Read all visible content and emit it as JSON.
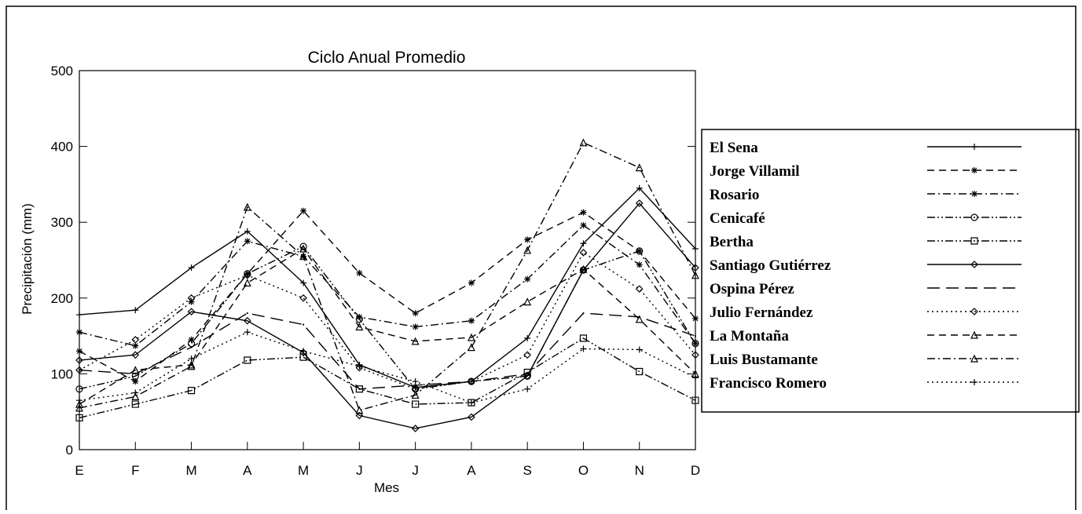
{
  "chart_data": {
    "type": "line",
    "title": "Ciclo Anual Promedio",
    "x_label": "Mes",
    "y_label": "Precipitación (mm)",
    "categories": [
      "E",
      "F",
      "M",
      "A",
      "M",
      "J",
      "J",
      "A",
      "S",
      "O",
      "N",
      "D"
    ],
    "ylim": [
      0,
      500
    ],
    "yticks": [
      0,
      100,
      200,
      300,
      400,
      500
    ],
    "series": [
      {
        "name": "El Sena",
        "color": "#000000",
        "dash": "solid",
        "marker": "plus",
        "values": [
          178,
          184,
          240,
          288,
          220,
          112,
          82,
          90,
          147,
          272,
          345,
          265
        ]
      },
      {
        "name": "Jorge Villamil",
        "color": "#000000",
        "dash": "dashed",
        "marker": "asterisk",
        "values": [
          130,
          90,
          145,
          232,
          315,
          233,
          180,
          220,
          277,
          313,
          262,
          173
        ]
      },
      {
        "name": "Rosario",
        "color": "#000000",
        "dash": "dashdot",
        "marker": "asterisk",
        "values": [
          155,
          137,
          195,
          275,
          255,
          175,
          162,
          170,
          225,
          296,
          244,
          140
        ]
      },
      {
        "name": "Cenicafé",
        "color": "#000000",
        "dash": "dashdotdot",
        "marker": "circle",
        "values": [
          80,
          97,
          140,
          232,
          268,
          172,
          80,
          90,
          97,
          237,
          262,
          140
        ]
      },
      {
        "name": "Bertha",
        "color": "#000000",
        "dash": "dashdotdot",
        "marker": "square",
        "values": [
          42,
          60,
          78,
          118,
          122,
          80,
          60,
          62,
          102,
          147,
          103,
          65
        ]
      },
      {
        "name": "Santiago Gutiérrez",
        "color": "#000000",
        "dash": "solid",
        "marker": "diamond",
        "values": [
          118,
          125,
          182,
          170,
          128,
          45,
          28,
          43,
          97,
          237,
          325,
          240
        ]
      },
      {
        "name": "Ospina Pérez",
        "color": "#000000",
        "dash": "longdash",
        "marker": "none",
        "values": [
          105,
          100,
          135,
          180,
          165,
          80,
          85,
          90,
          100,
          180,
          175,
          150
        ]
      },
      {
        "name": "Julio Fernández",
        "color": "#000000",
        "dash": "dotted",
        "marker": "diamond",
        "values": [
          105,
          145,
          200,
          230,
          200,
          108,
          80,
          90,
          125,
          260,
          212,
          125
        ]
      },
      {
        "name": "La Montaña",
        "color": "#000000",
        "dash": "dashed",
        "marker": "triangle",
        "values": [
          60,
          105,
          112,
          220,
          265,
          162,
          143,
          148,
          195,
          238,
          172,
          100
        ]
      },
      {
        "name": "Luis Bustamante",
        "color": "#000000",
        "dash": "dashdot",
        "marker": "triangle",
        "values": [
          55,
          70,
          110,
          320,
          255,
          52,
          72,
          135,
          263,
          405,
          372,
          230
        ]
      },
      {
        "name": "Francisco Romero",
        "color": "#000000",
        "dash": "dotted",
        "marker": "plus",
        "values": [
          65,
          75,
          120,
          155,
          130,
          110,
          90,
          62,
          80,
          133,
          132,
          95
        ]
      }
    ]
  }
}
